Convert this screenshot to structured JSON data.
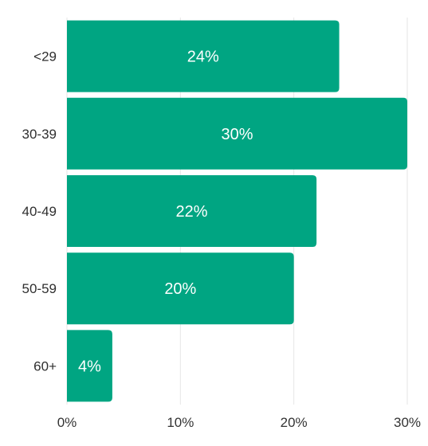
{
  "chart_data": {
    "type": "bar",
    "orientation": "horizontal",
    "categories": [
      "<29",
      "30-39",
      "40-49",
      "50-59",
      "60+"
    ],
    "values": [
      24,
      30,
      22,
      20,
      4
    ],
    "value_labels": [
      "24%",
      "30%",
      "22%",
      "20%",
      "4%"
    ],
    "xlim": [
      0,
      30
    ],
    "xticks": [
      0,
      10,
      20,
      30
    ],
    "xtick_labels": [
      "0%",
      "10%",
      "20%",
      "30%"
    ],
    "title": "",
    "xlabel": "",
    "ylabel": "",
    "grid": true,
    "legend": "none",
    "bar_color": "#00a582"
  }
}
